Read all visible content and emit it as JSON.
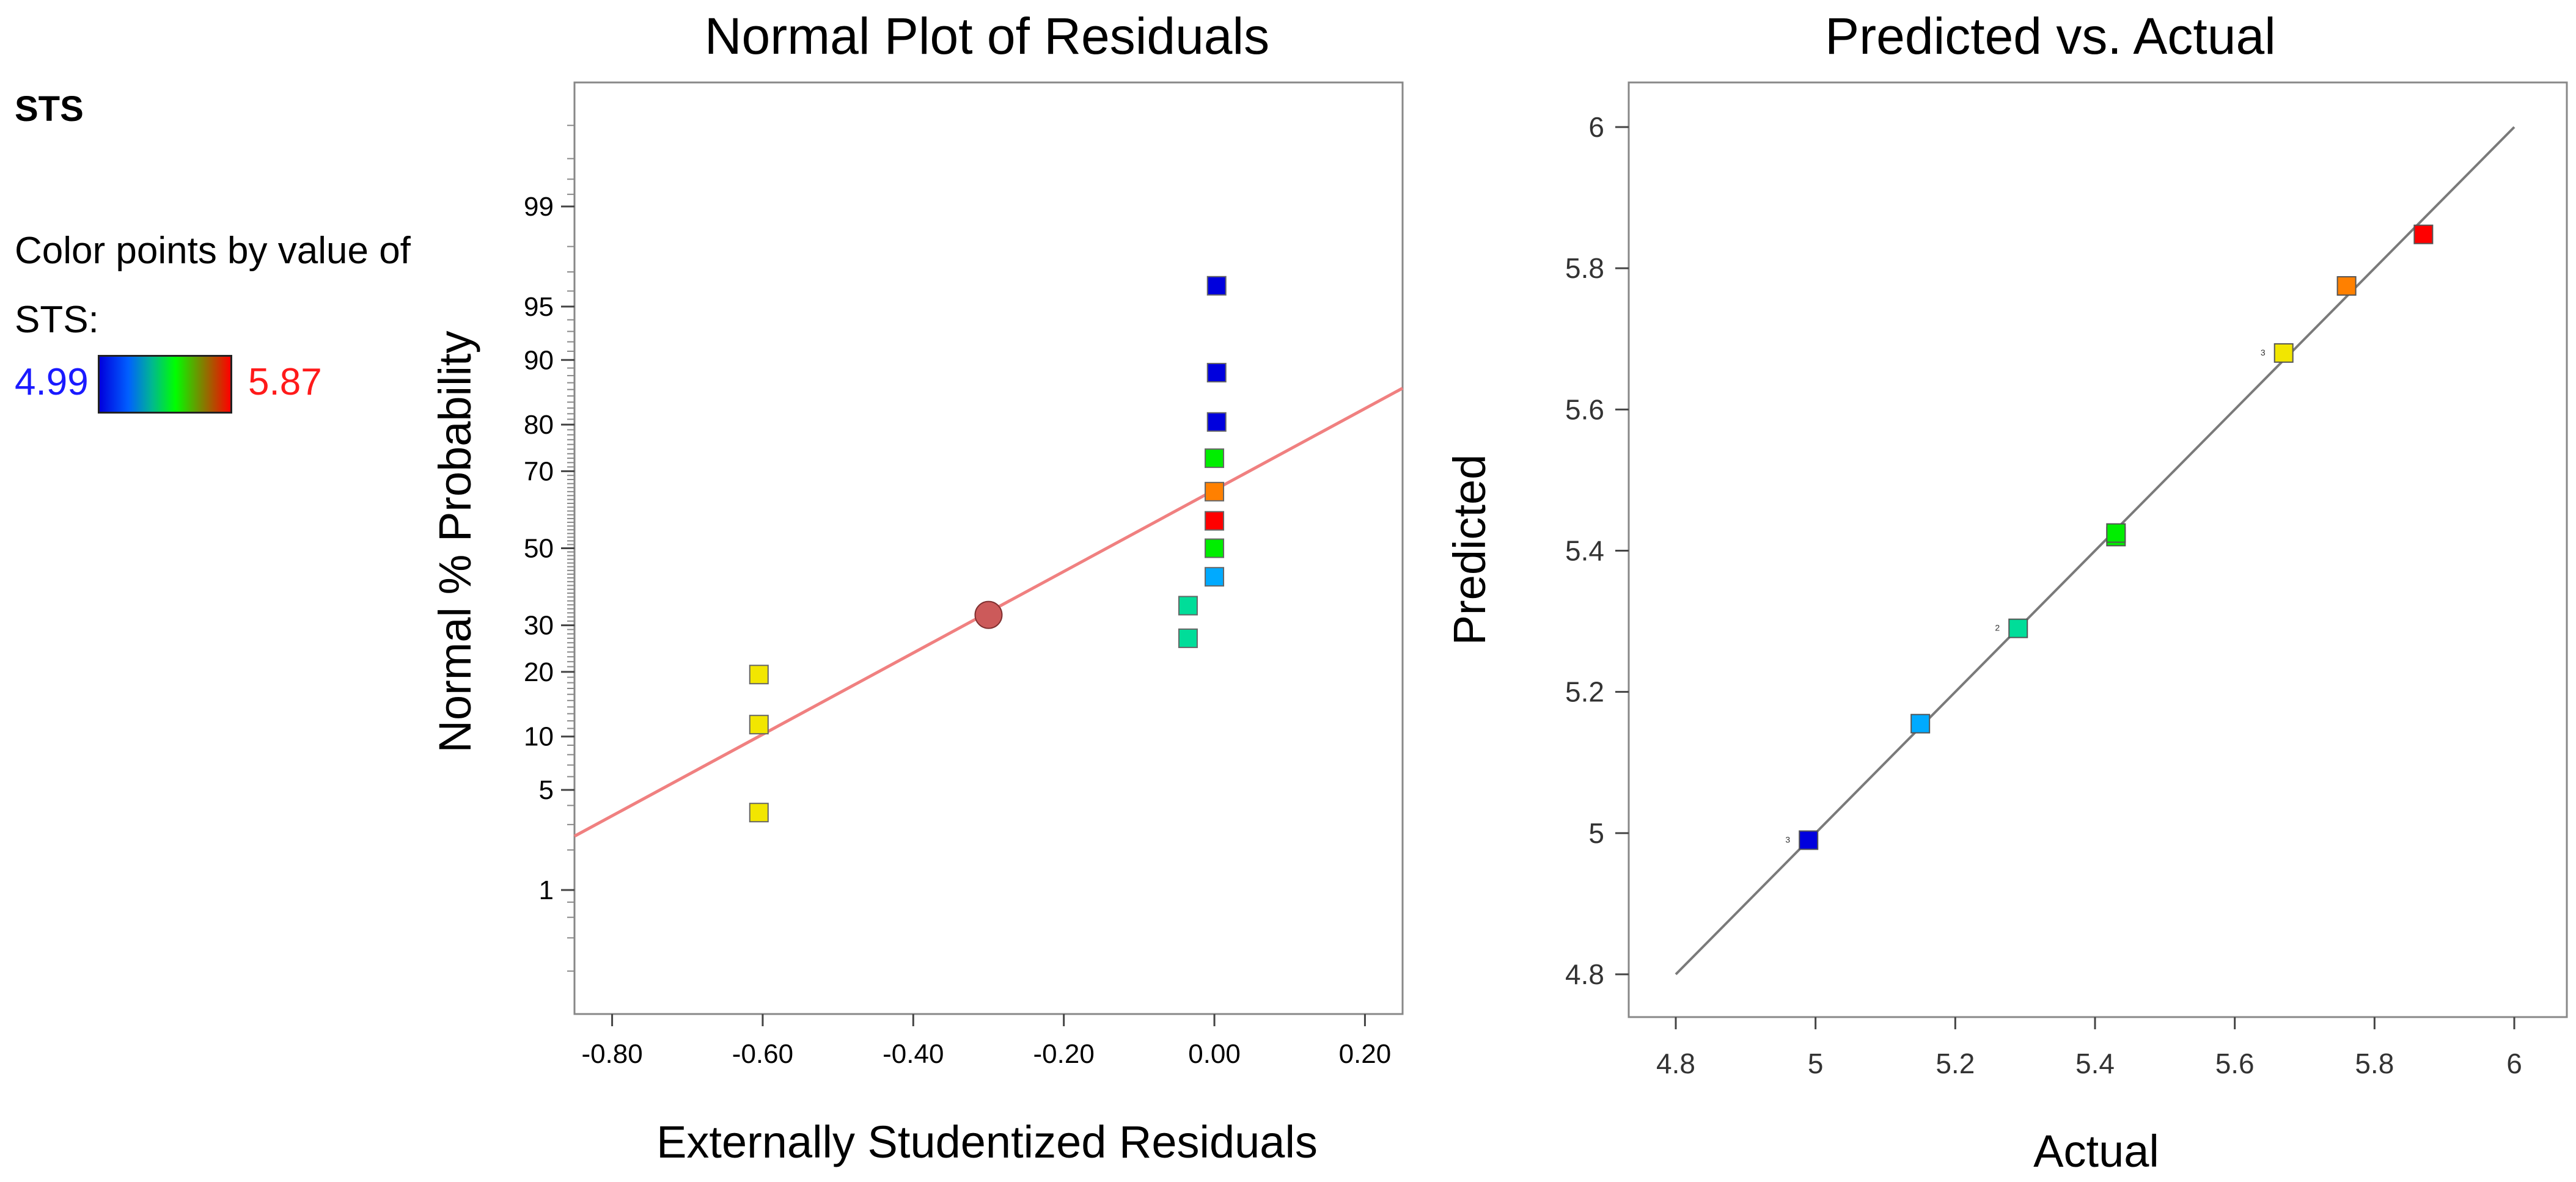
{
  "legend": {
    "title": "STS",
    "line1": "Color points by value of",
    "line2": "STS:",
    "min": "4.99",
    "max": "5.87"
  },
  "chart_data": [
    {
      "type": "scatter",
      "title": "Normal Plot of Residuals",
      "xlabel": "Externally Studentized Residuals",
      "ylabel": "Normal % Probability",
      "xlim": [
        -0.85,
        0.25
      ],
      "ylim": [
        0.1,
        99.9
      ],
      "y_scale": "normal-probability",
      "x_ticks": [
        "-0.80",
        "-0.60",
        "-0.40",
        "-0.20",
        "0.00",
        "0.20"
      ],
      "y_ticks": [
        "1",
        "5",
        "10",
        "20",
        "30",
        "50",
        "70",
        "80",
        "90",
        "95",
        "99"
      ],
      "points": [
        {
          "x": -0.605,
          "y": 19.5,
          "color": "#f2e600"
        },
        {
          "x": -0.605,
          "y": 11.5,
          "color": "#f2e600"
        },
        {
          "x": -0.605,
          "y": 3.6,
          "color": "#f2e600"
        },
        {
          "x": 0.003,
          "y": 96.3,
          "color": "#0000dd"
        },
        {
          "x": 0.003,
          "y": 88.4,
          "color": "#0000dd"
        },
        {
          "x": 0.003,
          "y": 80.5,
          "color": "#0000dd"
        },
        {
          "x": 0.0,
          "y": 73.0,
          "color": "#00ee00"
        },
        {
          "x": 0.0,
          "y": 65.0,
          "color": "#ff8000"
        },
        {
          "x": 0.0,
          "y": 57.4,
          "color": "#ff0000"
        },
        {
          "x": 0.0,
          "y": 50.0,
          "color": "#00ee00"
        },
        {
          "x": 0.0,
          "y": 42.3,
          "color": "#00aaff"
        },
        {
          "x": -0.035,
          "y": 34.8,
          "color": "#00dd99"
        },
        {
          "x": -0.035,
          "y": 27.0,
          "color": "#00dd99"
        }
      ],
      "reference_line": [
        {
          "x": -0.85,
          "y": 2.5
        },
        {
          "x": 0.25,
          "y": 86.2
        }
      ],
      "reference_point": {
        "x": -0.3,
        "y": 32.5
      }
    },
    {
      "type": "scatter",
      "title": "Predicted vs. Actual",
      "xlabel": "Actual",
      "ylabel": "Predicted",
      "xlim": [
        4.8,
        6.0
      ],
      "ylim": [
        4.8,
        6.0
      ],
      "x_ticks": [
        "4.8",
        "5",
        "5.2",
        "5.4",
        "5.6",
        "5.8",
        "6"
      ],
      "y_ticks": [
        "4.8",
        "5",
        "5.2",
        "5.4",
        "5.6",
        "5.8",
        "6"
      ],
      "points": [
        {
          "x": 4.99,
          "y": 4.99,
          "color": "#0000dd"
        },
        {
          "x": 5.15,
          "y": 5.155,
          "color": "#00aaff"
        },
        {
          "x": 5.29,
          "y": 5.29,
          "color": "#00dd99"
        },
        {
          "x": 5.43,
          "y": 5.42,
          "color": "#00ee00"
        },
        {
          "x": 5.43,
          "y": 5.425,
          "color": "#00ee00"
        },
        {
          "x": 5.67,
          "y": 5.68,
          "color": "#f2e600"
        },
        {
          "x": 5.76,
          "y": 5.775,
          "color": "#ff8000"
        },
        {
          "x": 5.87,
          "y": 5.848,
          "color": "#ff0000"
        }
      ],
      "point_labels": [
        {
          "x": 4.99,
          "y": 4.99,
          "text": "3"
        },
        {
          "x": 5.29,
          "y": 5.29,
          "text": "2"
        },
        {
          "x": 5.67,
          "y": 5.68,
          "text": "3"
        }
      ],
      "reference_line": [
        {
          "x": 4.8,
          "y": 4.8
        },
        {
          "x": 6.0,
          "y": 6.0
        }
      ]
    }
  ]
}
